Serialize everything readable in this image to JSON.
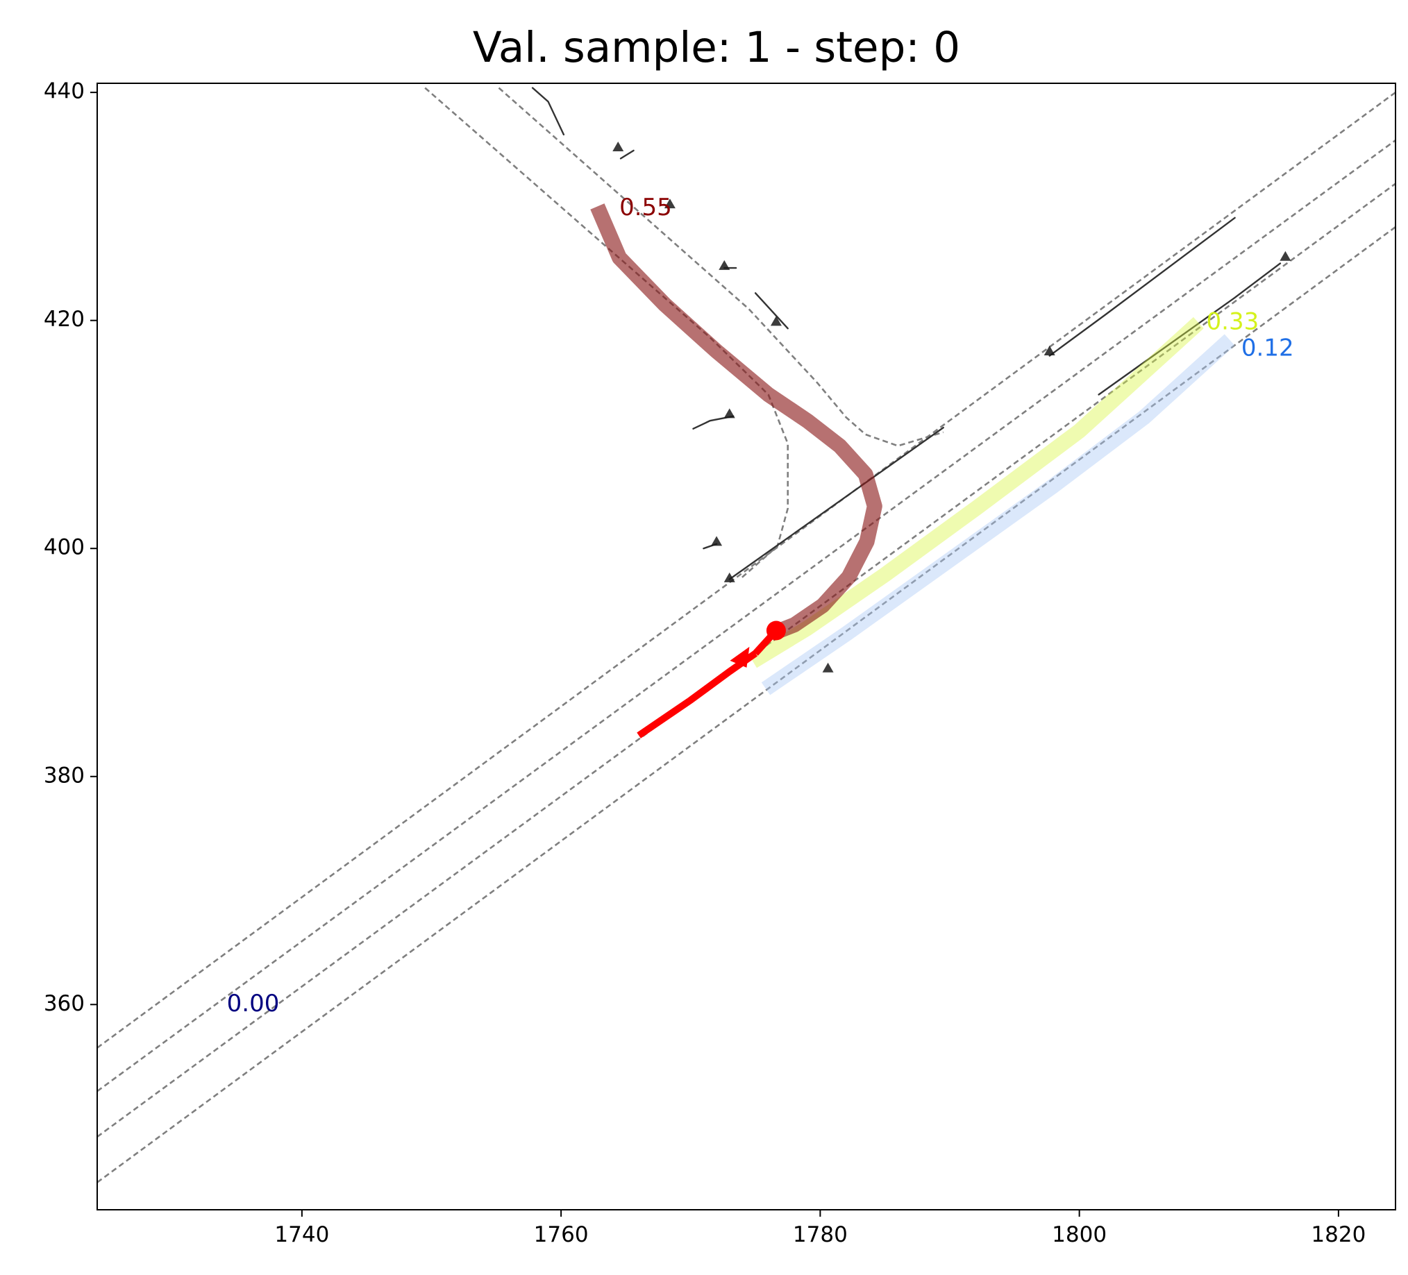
{
  "chart_data": {
    "type": "line",
    "title": "Val. sample: 1 - step: 0",
    "xlabel": "",
    "ylabel": "",
    "xlim": [
      1724.2,
      1824.4
    ],
    "ylim": [
      342.0,
      440.8
    ],
    "xticks": [
      1740,
      1760,
      1780,
      1800,
      1820
    ],
    "yticks": [
      360,
      380,
      400,
      420,
      440
    ],
    "grid": false,
    "lane_lines": [
      {
        "style": "dashed",
        "points": [
          [
            1724.2,
            356.2
          ],
          [
            1824.4,
            440.0
          ]
        ]
      },
      {
        "style": "dashed",
        "points": [
          [
            1724.2,
            352.4
          ],
          [
            1824.4,
            435.8
          ]
        ]
      },
      {
        "style": "dashed",
        "points": [
          [
            1724.2,
            348.4
          ],
          [
            1824.4,
            432.0
          ]
        ]
      },
      {
        "style": "dashed",
        "points": [
          [
            1724.2,
            344.4
          ],
          [
            1824.4,
            428.2
          ]
        ]
      },
      {
        "style": "dashed",
        "points": [
          [
            1749.5,
            440.4
          ],
          [
            1771.5,
            418.5
          ],
          [
            1776.0,
            413.5
          ],
          [
            1777.5,
            409.2
          ],
          [
            1777.5,
            403.5
          ],
          [
            1776.7,
            400.2
          ],
          [
            1773.8,
            397.3
          ]
        ]
      },
      {
        "style": "dashed",
        "points": [
          [
            1755.2,
            440.4
          ],
          [
            1774.5,
            421.0
          ],
          [
            1779.8,
            414.5
          ],
          [
            1782.0,
            411.5
          ],
          [
            1783.5,
            410.0
          ],
          [
            1786.0,
            409.0
          ],
          [
            1789.5,
            410.2
          ]
        ]
      }
    ],
    "road_edges": [
      {
        "points": [
          [
            1757.8,
            440.4
          ],
          [
            1759.0,
            439.2
          ],
          [
            1760.2,
            436.3
          ]
        ]
      },
      {
        "points": [
          [
            1764.6,
            434.2
          ],
          [
            1765.6,
            434.9
          ]
        ]
      },
      {
        "points": [
          [
            1772.6,
            424.6
          ],
          [
            1773.5,
            424.6
          ]
        ]
      },
      {
        "points": [
          [
            1775.0,
            422.4
          ],
          [
            1777.5,
            419.3
          ]
        ]
      },
      {
        "points": [
          [
            1770.2,
            410.5
          ],
          [
            1771.5,
            411.2
          ],
          [
            1773.3,
            411.6
          ]
        ]
      },
      {
        "points": [
          [
            1771.0,
            400.0
          ],
          [
            1772.0,
            400.4
          ]
        ]
      },
      {
        "points": [
          [
            1773.0,
            397.3
          ],
          [
            1789.5,
            410.6
          ]
        ]
      },
      {
        "points": [
          [
            1797.7,
            416.9
          ],
          [
            1802.0,
            420.5
          ],
          [
            1812.0,
            429.0
          ]
        ]
      },
      {
        "points": [
          [
            1801.5,
            413.5
          ],
          [
            1812.0,
            422.0
          ],
          [
            1815.5,
            425.0
          ]
        ]
      }
    ],
    "markers": [
      {
        "x": 1764.4,
        "y": 435.2
      },
      {
        "x": 1768.4,
        "y": 430.2
      },
      {
        "x": 1772.6,
        "y": 424.8
      },
      {
        "x": 1776.6,
        "y": 419.9
      },
      {
        "x": 1773.0,
        "y": 411.8
      },
      {
        "x": 1772.0,
        "y": 400.6
      },
      {
        "x": 1773.0,
        "y": 397.4
      },
      {
        "x": 1780.6,
        "y": 389.5
      },
      {
        "x": 1797.7,
        "y": 417.3
      },
      {
        "x": 1815.9,
        "y": 425.6
      }
    ],
    "series": [
      {
        "label": "0.55",
        "color": "#8b1a1a",
        "points": [
          [
            1776.2,
            392.5
          ],
          [
            1778.0,
            393.3
          ],
          [
            1780.2,
            395.0
          ],
          [
            1782.2,
            397.5
          ],
          [
            1783.6,
            400.6
          ],
          [
            1784.2,
            403.7
          ],
          [
            1783.5,
            406.5
          ],
          [
            1781.5,
            409.0
          ],
          [
            1779.0,
            411.2
          ],
          [
            1776.0,
            413.5
          ],
          [
            1772.0,
            417.3
          ],
          [
            1768.0,
            421.4
          ],
          [
            1764.5,
            425.5
          ],
          [
            1762.8,
            430.0
          ]
        ]
      },
      {
        "label": "0.33",
        "color": "#d8f542",
        "points": [
          [
            1774.8,
            390.1
          ],
          [
            1779.0,
            393.0
          ],
          [
            1785.0,
            397.7
          ],
          [
            1792.0,
            403.5
          ],
          [
            1800.0,
            410.3
          ],
          [
            1809.2,
            419.8
          ]
        ]
      },
      {
        "label": "0.12",
        "color": "#a9c9f5",
        "points": [
          [
            1775.8,
            387.7
          ],
          [
            1782.0,
            392.5
          ],
          [
            1790.0,
            399.0
          ],
          [
            1798.0,
            405.5
          ],
          [
            1805.0,
            411.5
          ],
          [
            1811.6,
            418.3
          ]
        ]
      },
      {
        "label": "0.00",
        "color": "#000080",
        "points": []
      }
    ],
    "labels": [
      {
        "text": "0.55",
        "x": 1764.5,
        "y": 429.8,
        "color": "#8b0000"
      },
      {
        "text": "0.33",
        "x": 1809.8,
        "y": 419.8,
        "color": "#d4f21c"
      },
      {
        "text": "0.12",
        "x": 1812.5,
        "y": 417.5,
        "color": "#1f6fe6"
      },
      {
        "text": "0.00",
        "x": 1734.2,
        "y": 360.0,
        "color": "#000080"
      }
    ],
    "history": {
      "color": "#ff0000",
      "points": [
        [
          1766.0,
          383.6
        ],
        [
          1770.0,
          386.7
        ],
        [
          1773.0,
          389.2
        ],
        [
          1775.0,
          390.8
        ]
      ],
      "current": {
        "x": 1776.6,
        "y": 392.8
      },
      "heading_marker": {
        "x": 1774.0,
        "y": 390.4
      }
    }
  }
}
